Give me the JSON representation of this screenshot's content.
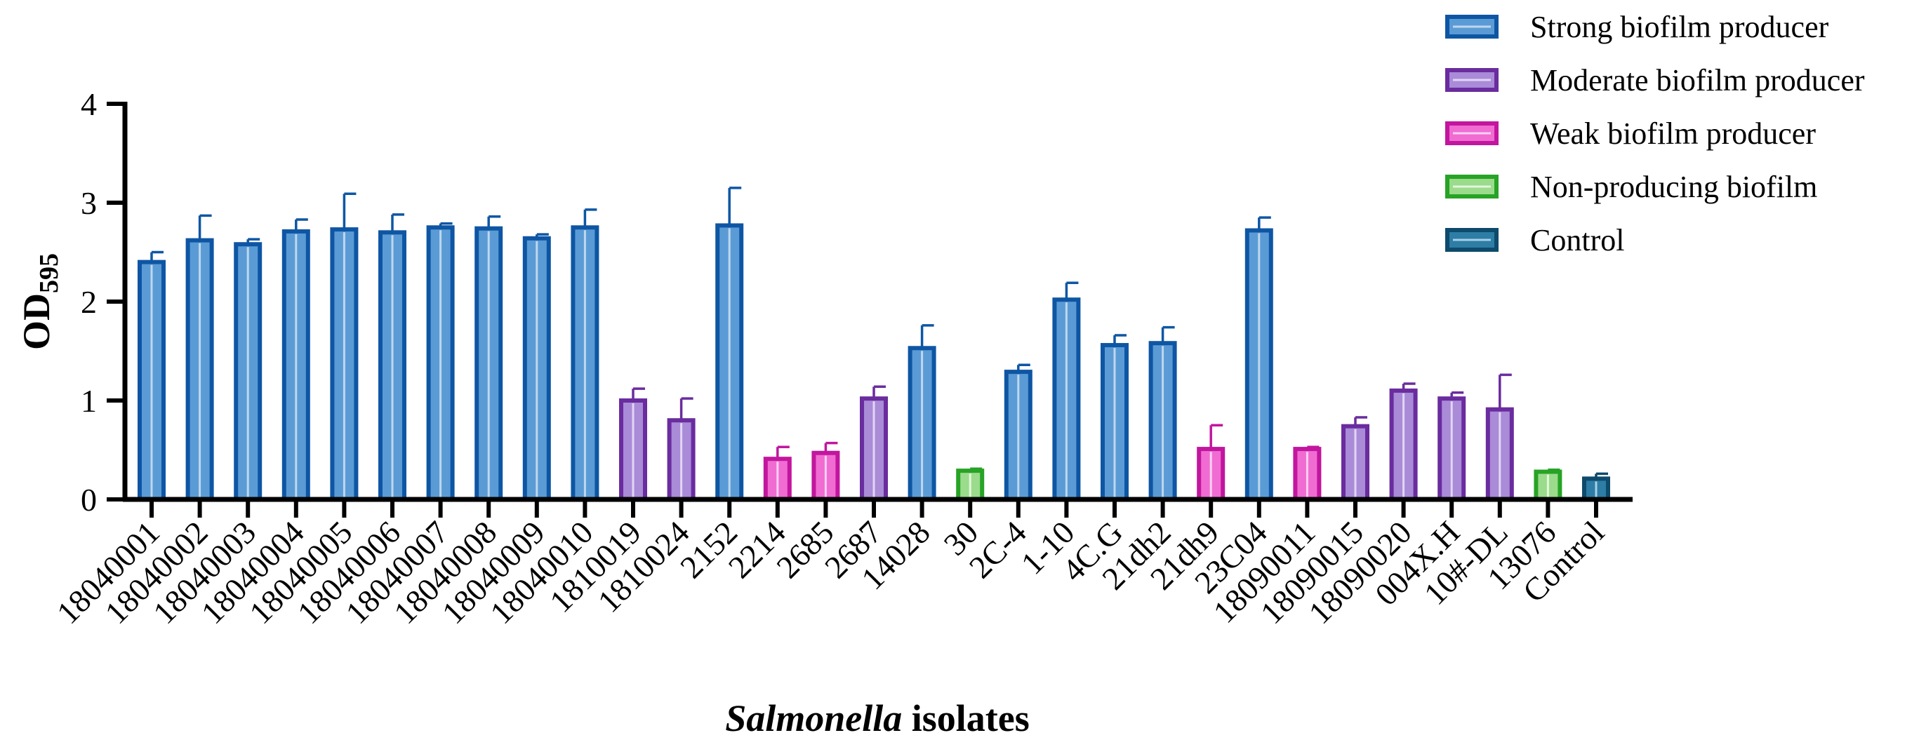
{
  "chart_data": {
    "type": "bar",
    "title": "",
    "xlabel_italic": "Salmonella",
    "xlabel_rest": " isolates",
    "ylabel_main": "OD",
    "ylabel_sub": "595",
    "ylim": [
      0,
      4
    ],
    "yticks": [
      "0",
      "1",
      "2",
      "3",
      "4"
    ],
    "legend_position": "top-right",
    "groups": [
      {
        "name": "Strong biofilm producer",
        "edge": "#0E56A4",
        "fill": "#5B9BD5",
        "line": "#BDD7EE"
      },
      {
        "name": "Moderate biofilm producer",
        "edge": "#6A2C9E",
        "fill": "#A98BD8",
        "line": "#E2D6F3"
      },
      {
        "name": "Weak biofilm producer",
        "edge": "#C2169E",
        "fill": "#F06CD2",
        "line": "#FBD0F1"
      },
      {
        "name": "Non-producing biofilm",
        "edge": "#27A325",
        "fill": "#9BDB8C",
        "line": "#E3F6DE"
      },
      {
        "name": "Control",
        "edge": "#0D4A6B",
        "fill": "#2D7DA6",
        "line": "#A8D0E6"
      }
    ],
    "categories": [
      "18040001",
      "18040002",
      "18040003",
      "18040004",
      "18040005",
      "18040006",
      "18040007",
      "18040008",
      "18040009",
      "18040010",
      "1810019",
      "1810024",
      "2152",
      "2214",
      "2685",
      "2687",
      "14028",
      "30",
      "2C-4",
      "1-10",
      "4C.G",
      "21dh2",
      "21dh9",
      "23C04",
      "18090011",
      "18090015",
      "18090020",
      "004X.H",
      "10#-DL",
      "13076",
      "Control"
    ],
    "values": [
      2.4,
      2.62,
      2.58,
      2.71,
      2.73,
      2.7,
      2.75,
      2.74,
      2.64,
      2.75,
      1.0,
      0.8,
      2.77,
      0.41,
      0.47,
      1.02,
      1.53,
      0.29,
      1.29,
      2.02,
      1.56,
      1.58,
      0.51,
      2.72,
      0.51,
      0.74,
      1.1,
      1.02,
      0.91,
      0.28,
      0.21
    ],
    "errors": [
      0.1,
      0.25,
      0.05,
      0.12,
      0.36,
      0.18,
      0.04,
      0.12,
      0.04,
      0.18,
      0.12,
      0.22,
      0.38,
      0.12,
      0.1,
      0.12,
      0.23,
      0.02,
      0.07,
      0.17,
      0.1,
      0.16,
      0.24,
      0.13,
      0.02,
      0.09,
      0.07,
      0.06,
      0.35,
      0.02,
      0.05
    ],
    "group_index": [
      0,
      0,
      0,
      0,
      0,
      0,
      0,
      0,
      0,
      0,
      1,
      1,
      0,
      2,
      2,
      1,
      0,
      3,
      0,
      0,
      0,
      0,
      2,
      0,
      2,
      1,
      1,
      1,
      1,
      3,
      4
    ]
  }
}
